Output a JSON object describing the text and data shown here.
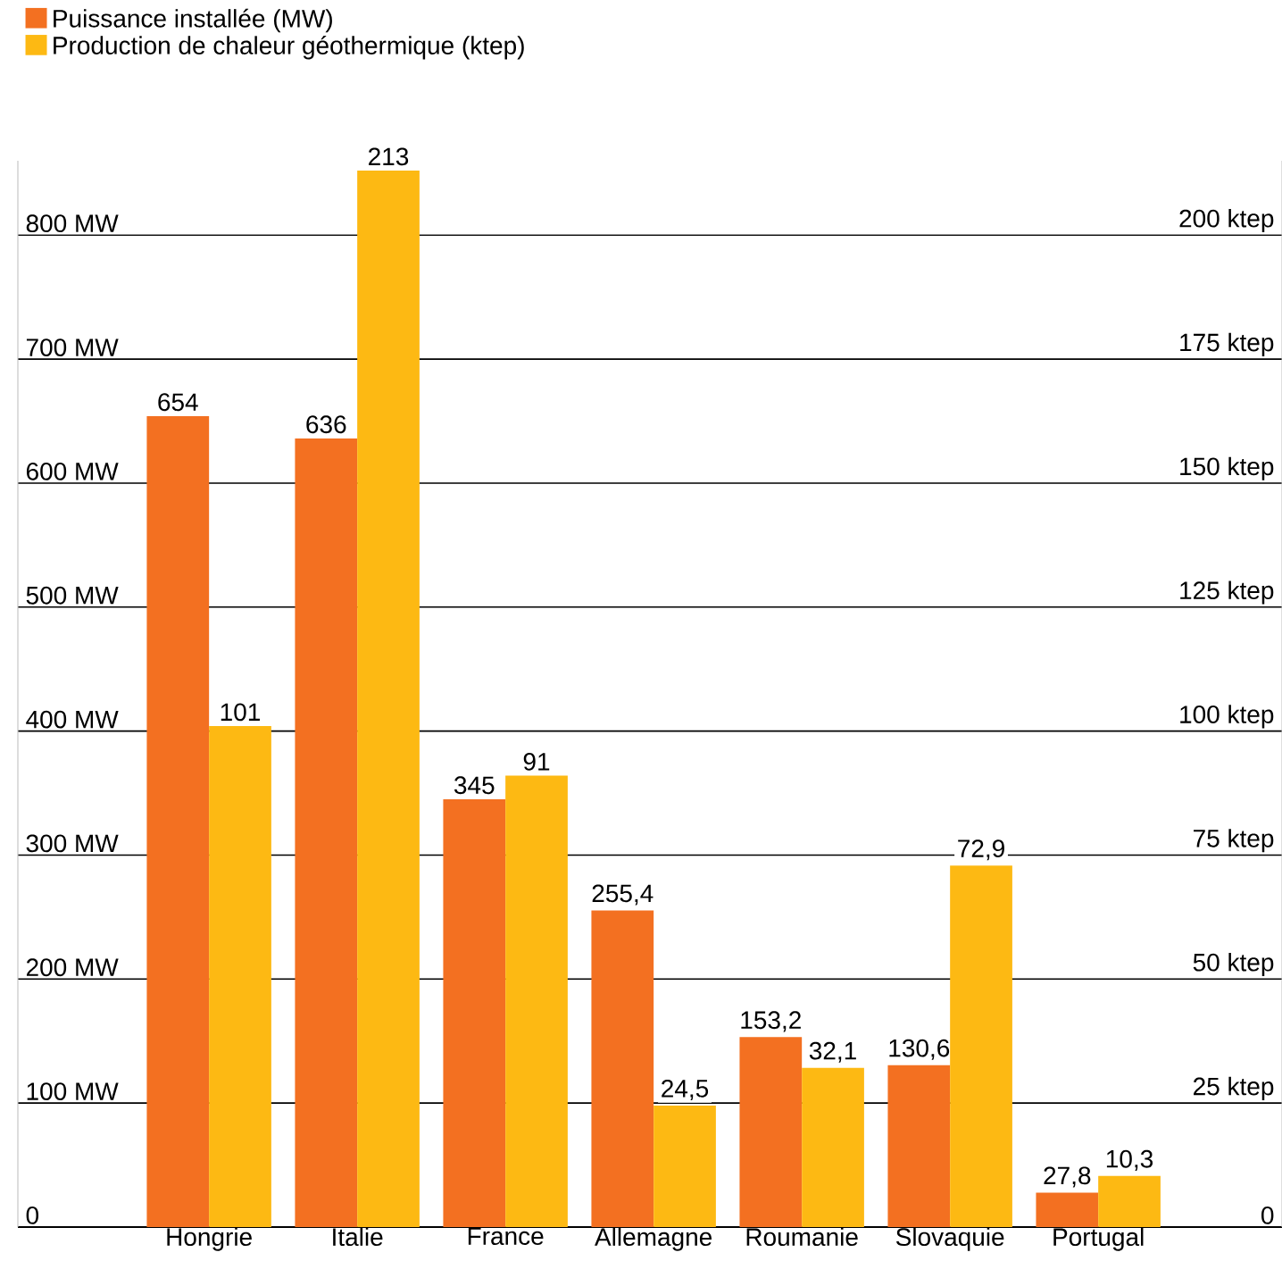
{
  "chart_data": {
    "type": "bar",
    "categories": [
      "Hongrie",
      "Italie",
      "France",
      "Allemagne",
      "Roumanie",
      "Slovaquie",
      "Portugal"
    ],
    "series": [
      {
        "name": "Puissance installée (MW)",
        "color": "#f37021",
        "values": [
          654,
          636,
          345,
          255.4,
          153.2,
          130.6,
          27.8
        ],
        "value_labels": [
          "654",
          "636",
          "345",
          "255,4",
          "153,2",
          "130,6",
          "27,8"
        ]
      },
      {
        "name": "Production de chaleur géothermique (ktep)",
        "color": "#fdb913",
        "axis": "y2",
        "values": [
          101,
          213,
          91,
          24.5,
          32.1,
          72.9,
          10.3
        ],
        "value_labels": [
          "101",
          "213",
          "91",
          "24,5",
          "32,1",
          "72,9",
          "10,3"
        ]
      }
    ],
    "ylim": [
      0,
      860
    ],
    "yticks": [
      0,
      {
        "value": 100,
        "label": "100 MW"
      },
      {
        "value": 200,
        "label": "200 MW"
      },
      {
        "value": 300,
        "label": "300 MW"
      },
      {
        "value": 400,
        "label": "400 MW"
      },
      {
        "value": 500,
        "label": "500 MW"
      },
      {
        "value": 600,
        "label": "600 MW"
      },
      {
        "value": 700,
        "label": "700 MW"
      },
      {
        "value": 800,
        "label": "800 MW"
      }
    ],
    "y2lim": [
      0,
      215
    ],
    "y2ticks": [
      0,
      {
        "value": 25,
        "label": "25 ktep"
      },
      {
        "value": 50,
        "label": "50 ktep"
      },
      {
        "value": 75,
        "label": "75 ktep"
      },
      {
        "value": 100,
        "label": "100 ktep"
      },
      {
        "value": 125,
        "label": "125 ktep"
      },
      {
        "value": 150,
        "label": "150 ktep"
      },
      {
        "value": 175,
        "label": "175 ktep"
      },
      {
        "value": 200,
        "label": "200 ktep"
      }
    ],
    "grid": "y",
    "legend": "top left"
  }
}
